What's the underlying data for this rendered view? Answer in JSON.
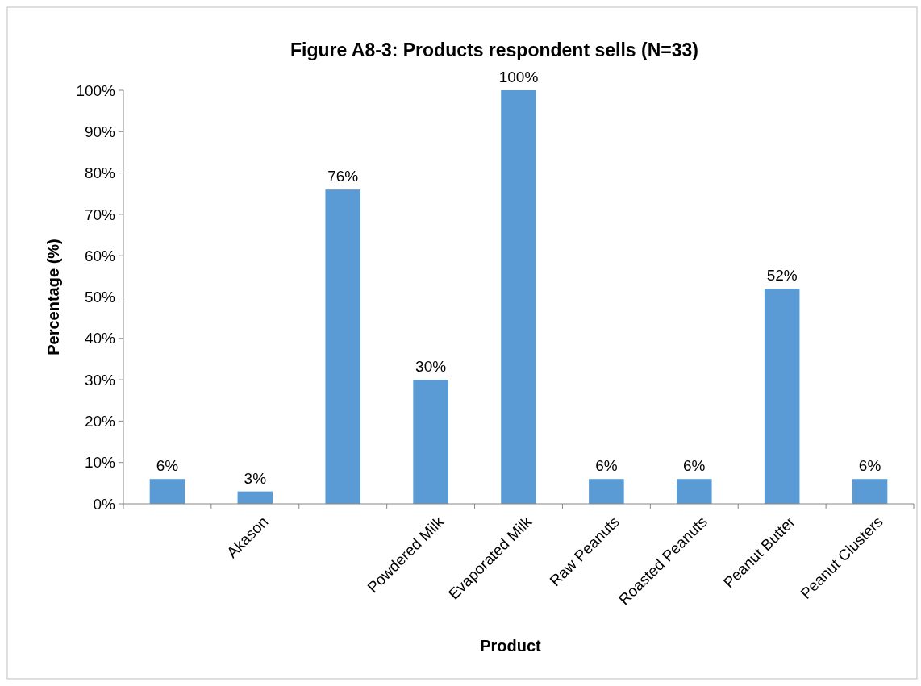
{
  "chart_data": {
    "type": "bar",
    "title": "Figure A8-3: Products respondent sells (N=33)",
    "xlabel": "Product",
    "ylabel": "Percentage (%)",
    "categories": [
      null,
      "Akason",
      null,
      "Powdered Milk",
      "Evaporated Milk",
      "Raw Peanuts",
      "Roasted Peanuts",
      "Peanut Butter",
      "Peanut Clusters"
    ],
    "values": [
      6,
      3,
      76,
      30,
      100,
      6,
      6,
      52,
      6
    ],
    "color": "#5b9bd5",
    "ylim": [
      0,
      100
    ],
    "yticks": [
      {
        "value": 0,
        "label": "0%"
      },
      {
        "value": 10,
        "label": "10%"
      },
      {
        "value": 20,
        "label": "20%"
      },
      {
        "value": 30,
        "label": "30%"
      },
      {
        "value": 40,
        "label": "40%"
      },
      {
        "value": 50,
        "label": "50%"
      },
      {
        "value": 60,
        "label": "60%"
      },
      {
        "value": 70,
        "label": "70%"
      },
      {
        "value": 80,
        "label": "80%"
      },
      {
        "value": 90,
        "label": "90%"
      },
      {
        "value": 100,
        "label": "100%"
      }
    ],
    "value_labels": [
      "6%",
      "3%",
      "76%",
      "30%",
      "100%",
      "6%",
      "6%",
      "52%",
      "6%"
    ],
    "grid": false
  }
}
